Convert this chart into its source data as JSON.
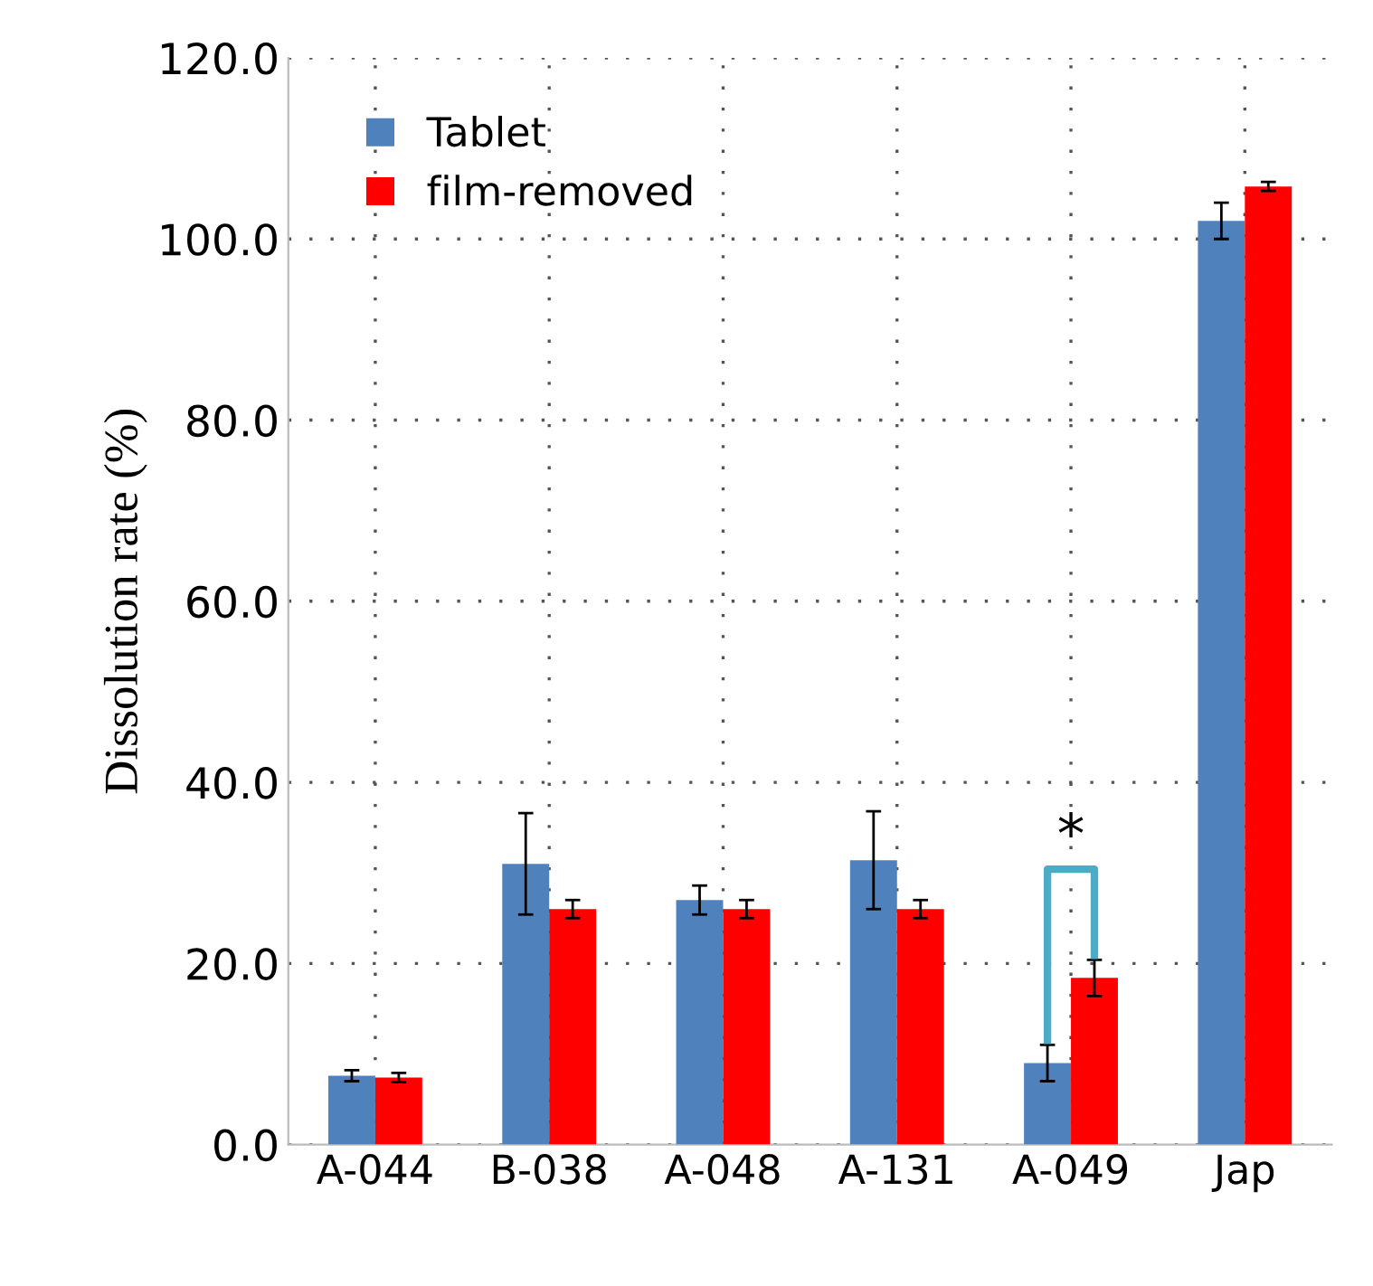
{
  "chart_data": {
    "type": "bar",
    "ylabel": "Dissolution rate (%)",
    "categories": [
      "A-044",
      "B-038",
      "A-048",
      "A-131",
      "A-049",
      "Jap"
    ],
    "series": [
      {
        "name": "Tablet",
        "color": "#4f81bd",
        "values": [
          7.6,
          31,
          27,
          31.4,
          9,
          102
        ],
        "errors": [
          0.6,
          5.6,
          1.6,
          5.4,
          2,
          2
        ]
      },
      {
        "name": "film-removed",
        "color": "#ff0000",
        "values": [
          7.4,
          26,
          26,
          26,
          18.4,
          105.8
        ],
        "errors": [
          0.5,
          1,
          1,
          1,
          2,
          0.5
        ]
      }
    ],
    "ylim": [
      0,
      120
    ],
    "yticks": [
      {
        "value": 0,
        "label": "0.0"
      },
      {
        "value": 20,
        "label": "20.0"
      },
      {
        "value": 40,
        "label": "40.0"
      },
      {
        "value": 60,
        "label": "60.0"
      },
      {
        "value": 80,
        "label": "80.0"
      },
      {
        "value": 100,
        "label": "100.0"
      },
      {
        "value": 120,
        "label": "120.0"
      }
    ],
    "grid": true,
    "legend": "top left",
    "annotations": [
      "*"
    ]
  }
}
